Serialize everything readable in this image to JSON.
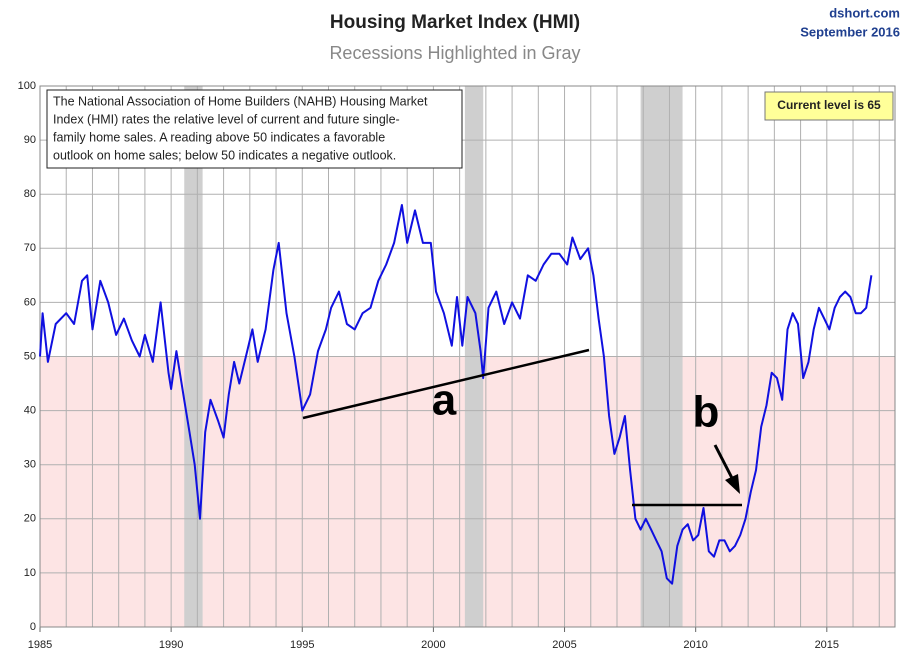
{
  "chart_data": {
    "type": "line",
    "title": "Housing Market Index (HMI)",
    "subtitle": "Recessions Highlighted in Gray",
    "source": "dshort.com",
    "date": "September 2016",
    "note": [
      "The National Association of Home Builders (NAHB) Housing Market",
      "Index (HMI) rates the relative level of current and future single-",
      "family home sales. A reading above 50 indicates a favorable",
      "outlook on home sales; below 50 indicates a negative outlook."
    ],
    "callout": "Current level is 65",
    "annotations": [
      "a",
      "b"
    ],
    "xlim": [
      1985,
      2017.6
    ],
    "xticks": [
      1985,
      1990,
      1995,
      2000,
      2005,
      2010,
      2015
    ],
    "x_grid_step": 1,
    "ylim": [
      0,
      100
    ],
    "yticks": [
      0,
      10,
      20,
      30,
      40,
      50,
      60,
      70,
      80,
      90,
      100
    ],
    "grid": true,
    "shade_below": 50,
    "shade_color": "#fde4e4",
    "recessions": [
      [
        1990.5,
        1991.2
      ],
      [
        2001.2,
        2001.9
      ],
      [
        2007.9,
        2009.5
      ]
    ],
    "recession_color": "#cfcfcf",
    "x": [
      1985.0,
      1985.1,
      1985.3,
      1985.6,
      1986.0,
      1986.3,
      1986.6,
      1986.8,
      1987.0,
      1987.3,
      1987.6,
      1987.9,
      1988.2,
      1988.5,
      1988.8,
      1989.0,
      1989.3,
      1989.6,
      1989.9,
      1990.0,
      1990.2,
      1990.5,
      1990.7,
      1990.9,
      1991.1,
      1991.3,
      1991.5,
      1991.8,
      1992.0,
      1992.2,
      1992.4,
      1992.6,
      1992.9,
      1993.1,
      1993.3,
      1993.6,
      1993.9,
      1994.1,
      1994.4,
      1994.7,
      1995.0,
      1995.3,
      1995.6,
      1995.9,
      1996.1,
      1996.4,
      1996.7,
      1997.0,
      1997.3,
      1997.6,
      1997.9,
      1998.2,
      1998.5,
      1998.8,
      1999.0,
      1999.3,
      1999.6,
      1999.9,
      2000.1,
      2000.4,
      2000.7,
      2000.9,
      2001.1,
      2001.3,
      2001.6,
      2001.8,
      2001.9,
      2002.1,
      2002.4,
      2002.7,
      2003.0,
      2003.3,
      2003.6,
      2003.9,
      2004.2,
      2004.5,
      2004.8,
      2005.1,
      2005.3,
      2005.6,
      2005.9,
      2006.1,
      2006.3,
      2006.5,
      2006.7,
      2006.9,
      2007.1,
      2007.3,
      2007.5,
      2007.7,
      2007.9,
      2008.1,
      2008.3,
      2008.5,
      2008.7,
      2008.9,
      2009.1,
      2009.3,
      2009.5,
      2009.7,
      2009.9,
      2010.1,
      2010.3,
      2010.5,
      2010.7,
      2010.9,
      2011.1,
      2011.3,
      2011.5,
      2011.7,
      2011.9,
      2012.1,
      2012.3,
      2012.5,
      2012.7,
      2012.9,
      2013.1,
      2013.3,
      2013.5,
      2013.7,
      2013.9,
      2014.1,
      2014.3,
      2014.5,
      2014.7,
      2014.9,
      2015.1,
      2015.3,
      2015.5,
      2015.7,
      2015.9,
      2016.1,
      2016.3,
      2016.5,
      2016.7
    ],
    "series": [
      {
        "name": "HMI",
        "color": "#1010e0",
        "values": [
          50,
          58,
          49,
          56,
          58,
          56,
          64,
          65,
          55,
          64,
          60,
          54,
          57,
          53,
          50,
          54,
          49,
          60,
          47,
          44,
          51,
          42,
          36,
          30,
          20,
          36,
          42,
          38,
          35,
          43,
          49,
          45,
          51,
          55,
          49,
          55,
          66,
          71,
          58,
          50,
          40,
          43,
          51,
          55,
          59,
          62,
          56,
          55,
          58,
          59,
          64,
          67,
          71,
          78,
          71,
          77,
          71,
          71,
          62,
          58,
          52,
          61,
          52,
          61,
          58,
          51,
          46,
          59,
          62,
          56,
          60,
          57,
          65,
          64,
          67,
          69,
          69,
          67,
          72,
          68,
          70,
          65,
          57,
          50,
          39,
          32,
          35,
          39,
          29,
          20,
          18,
          20,
          18,
          16,
          14,
          9,
          8,
          15,
          18,
          19,
          16,
          17,
          22,
          14,
          13,
          16,
          16,
          14,
          15,
          17,
          20,
          25,
          29,
          37,
          41,
          47,
          46,
          42,
          55,
          58,
          56,
          46,
          49,
          55,
          59,
          57,
          55,
          59,
          61,
          62,
          61,
          58,
          58,
          59,
          65
        ]
      }
    ]
  }
}
